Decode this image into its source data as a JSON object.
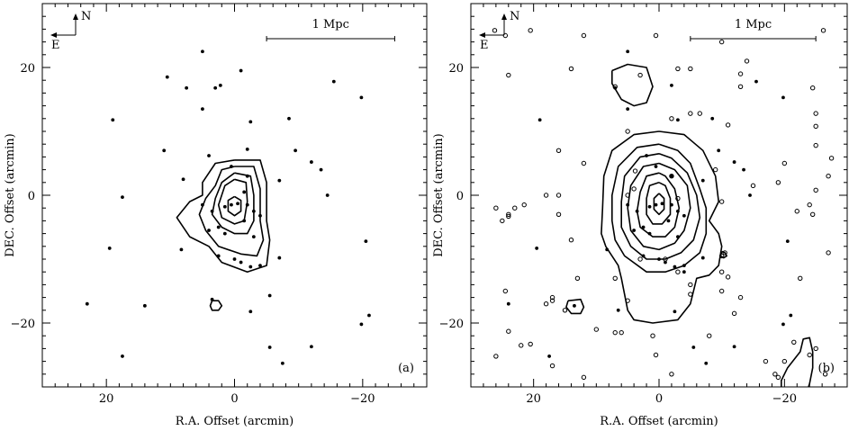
{
  "chart_data": [
    {
      "type": "scatter",
      "panel_label": "(a)",
      "xlabel": "R.A. Offset (arcmin)",
      "ylabel": "DEC. Offset (arcmin)",
      "xlim": [
        30,
        -30
      ],
      "ylim": [
        -30,
        30
      ],
      "x_ticks": [
        20,
        0,
        -20
      ],
      "x_tick_labels": [
        "20",
        "0",
        "−20"
      ],
      "y_ticks": [
        20,
        0,
        -20
      ],
      "y_tick_labels": [
        "20",
        "0",
        "−20"
      ],
      "compass": {
        "north": "N",
        "east": "E"
      },
      "scale_bar": {
        "label": "1 Mpc",
        "from": -5,
        "to": -25
      },
      "series": [
        {
          "marker": "filled",
          "points": [
            [
              5,
              22.5
            ],
            [
              -1,
              19.5
            ],
            [
              10.5,
              18.5
            ],
            [
              7.5,
              16.8
            ],
            [
              3,
              16.8
            ],
            [
              2.2,
              17.2
            ],
            [
              -15.5,
              17.8
            ],
            [
              -19.8,
              15.3
            ],
            [
              5,
              13.5
            ],
            [
              19,
              11.8
            ],
            [
              -8.5,
              12
            ],
            [
              -2.5,
              11.5
            ],
            [
              -2,
              7.2
            ],
            [
              -9.5,
              7
            ],
            [
              11,
              7
            ],
            [
              4,
              6.2
            ],
            [
              -12,
              5.2
            ],
            [
              -13.5,
              4
            ],
            [
              8,
              2.5
            ],
            [
              0.5,
              4.5
            ],
            [
              -2,
              3
            ],
            [
              -7,
              2.3
            ],
            [
              -14.5,
              0
            ],
            [
              -1.5,
              0.5
            ],
            [
              17.5,
              -0.3
            ],
            [
              5,
              -1.5
            ],
            [
              1.5,
              -1.8
            ],
            [
              0.5,
              -1.5
            ],
            [
              -0.5,
              -1.3
            ],
            [
              -2,
              -1.5
            ],
            [
              -3,
              -2.5
            ],
            [
              3.5,
              -2.5
            ],
            [
              -4,
              -3.2
            ],
            [
              -1.5,
              -4
            ],
            [
              2.5,
              -5
            ],
            [
              4,
              -5.5
            ],
            [
              1.5,
              -6
            ],
            [
              -3,
              -6.5
            ],
            [
              8.3,
              -8.5
            ],
            [
              19.5,
              -8.3
            ],
            [
              -20.5,
              -7.2
            ],
            [
              2.5,
              -9.5
            ],
            [
              0,
              -10
            ],
            [
              -1,
              -10.5
            ],
            [
              -2.5,
              -11.2
            ],
            [
              -4,
              -11
            ],
            [
              -7,
              -9.8
            ],
            [
              3.5,
              -16.3
            ],
            [
              -5.5,
              -15.7
            ],
            [
              23,
              -17
            ],
            [
              14,
              -17.3
            ],
            [
              -2.5,
              -18.2
            ],
            [
              -19.8,
              -20.2
            ],
            [
              -21,
              -18.8
            ],
            [
              17.5,
              -25.2
            ],
            [
              -5.5,
              -23.8
            ],
            [
              -12,
              -23.7
            ],
            [
              -7.5,
              -26.3
            ]
          ]
        }
      ]
    },
    {
      "type": "scatter",
      "panel_label": "(b)",
      "xlabel": "R.A. Offset (arcmin)",
      "ylabel": "DEC. Offset (arcmin)",
      "xlim": [
        30,
        -30
      ],
      "ylim": [
        -30,
        30
      ],
      "x_ticks": [
        20,
        0,
        -20
      ],
      "x_tick_labels": [
        "20",
        "0",
        "−20"
      ],
      "y_ticks": [
        20,
        0,
        -20
      ],
      "y_tick_labels": [
        "20",
        "0",
        "−20"
      ],
      "compass": {
        "north": "N",
        "east": "E"
      },
      "scale_bar": {
        "label": "1 Mpc",
        "from": -5,
        "to": -25
      },
      "series": [
        {
          "marker": "filled",
          "points": [
            [
              5,
              22.5
            ],
            [
              7,
              16.8
            ],
            [
              5,
              13.5
            ],
            [
              -2,
              17.2
            ],
            [
              19,
              11.8
            ],
            [
              -8.5,
              12
            ],
            [
              -3,
              11.8
            ],
            [
              -9.5,
              7
            ],
            [
              -12,
              5.2
            ],
            [
              -13.5,
              4
            ],
            [
              2,
              6.2
            ],
            [
              0.5,
              4.5
            ],
            [
              -2,
              3
            ],
            [
              -7,
              2.3
            ],
            [
              -14.5,
              0
            ],
            [
              5,
              -1.5
            ],
            [
              1.5,
              -1.8
            ],
            [
              0.5,
              -1.5
            ],
            [
              -0.5,
              -1.3
            ],
            [
              -2,
              -1.5
            ],
            [
              -3,
              -2.5
            ],
            [
              3.5,
              -2.5
            ],
            [
              -4,
              -3.2
            ],
            [
              -1.5,
              -4
            ],
            [
              2.5,
              -5
            ],
            [
              4,
              -5.5
            ],
            [
              1.5,
              -6
            ],
            [
              -3,
              -6.5
            ],
            [
              8.3,
              -8.5
            ],
            [
              19.5,
              -8.3
            ],
            [
              -20.5,
              -7.2
            ],
            [
              2.5,
              -9.5
            ],
            [
              0,
              -10
            ],
            [
              -1,
              -10.5
            ],
            [
              -2.5,
              -11.2
            ],
            [
              -4,
              -11
            ],
            [
              -7,
              -9.8
            ],
            [
              13.5,
              -17.3
            ],
            [
              -2.5,
              -18.2
            ],
            [
              -19.8,
              -20.2
            ],
            [
              -21,
              -18.8
            ],
            [
              17.5,
              -25.2
            ],
            [
              -5.5,
              -23.8
            ],
            [
              -12,
              -23.7
            ],
            [
              -7.5,
              -26.3
            ],
            [
              24,
              -17
            ],
            [
              6.5,
              -18
            ],
            [
              -19.8,
              15.3
            ],
            [
              -15.5,
              17.8
            ],
            [
              -4,
              -12
            ]
          ]
        },
        {
          "marker": "open",
          "points": [
            [
              26.2,
              25.8
            ],
            [
              24.5,
              25
            ],
            [
              20.5,
              25.8
            ],
            [
              12,
              25
            ],
            [
              0.5,
              25
            ],
            [
              -10,
              24
            ],
            [
              -26.2,
              25.8
            ],
            [
              14,
              19.8
            ],
            [
              24,
              18.8
            ],
            [
              7,
              17
            ],
            [
              3,
              18.8
            ],
            [
              -3,
              19.8
            ],
            [
              -5,
              19.8
            ],
            [
              -13,
              19
            ],
            [
              -14,
              21
            ],
            [
              -13,
              17
            ],
            [
              -24.5,
              16.8
            ],
            [
              -25,
              12.8
            ],
            [
              -25,
              10.8
            ],
            [
              -25,
              7.8
            ],
            [
              -5,
              12.8
            ],
            [
              -6.5,
              12.8
            ],
            [
              -2,
              12
            ],
            [
              -11,
              11
            ],
            [
              5,
              10
            ],
            [
              12,
              5
            ],
            [
              16,
              7
            ],
            [
              -9,
              4
            ],
            [
              -20,
              5
            ],
            [
              -27.5,
              5.8
            ],
            [
              -19,
              2
            ],
            [
              -25,
              0.8
            ],
            [
              -27,
              3
            ],
            [
              -15,
              1.5
            ],
            [
              3.8,
              3.8
            ],
            [
              5,
              0
            ],
            [
              -2,
              3
            ],
            [
              16,
              0
            ],
            [
              21.5,
              -1.5
            ],
            [
              26,
              -2
            ],
            [
              23,
              -2
            ],
            [
              24,
              -3
            ],
            [
              25,
              -4
            ],
            [
              24,
              -3.3
            ],
            [
              16,
              -3
            ],
            [
              18,
              0
            ],
            [
              4,
              1
            ],
            [
              -3,
              -0.5
            ],
            [
              -10,
              -1
            ],
            [
              -24,
              -1.5
            ],
            [
              -22,
              -2.5
            ],
            [
              -24.5,
              -3
            ],
            [
              -27,
              -9
            ],
            [
              -22.5,
              -13
            ],
            [
              -13,
              -16
            ],
            [
              -12,
              -18.5
            ],
            [
              -10,
              -15
            ],
            [
              -10,
              -12
            ],
            [
              -11,
              -12.8
            ],
            [
              7,
              -13
            ],
            [
              -3,
              -12
            ],
            [
              13,
              -13
            ],
            [
              14,
              -7
            ],
            [
              17,
              -16.5
            ],
            [
              18,
              -17
            ],
            [
              -5,
              -14
            ],
            [
              6,
              -21.5
            ],
            [
              10,
              -21
            ],
            [
              24.5,
              -15
            ],
            [
              24,
              -21.3
            ],
            [
              22,
              -23.5
            ],
            [
              20.5,
              -23.3
            ],
            [
              17,
              -16
            ],
            [
              3,
              -10
            ],
            [
              -1,
              -10
            ],
            [
              -8,
              -22
            ],
            [
              -20,
              -26
            ],
            [
              -17,
              -26
            ],
            [
              -21.5,
              -23
            ],
            [
              -25,
              -24
            ],
            [
              -24,
              -25
            ],
            [
              -26.5,
              -28
            ],
            [
              -19,
              -28.5
            ],
            [
              -18.5,
              -28
            ],
            [
              -2,
              -28
            ],
            [
              0.5,
              -25
            ],
            [
              12,
              -28.5
            ],
            [
              17,
              -26.7
            ],
            [
              26,
              -25.2
            ],
            [
              7,
              -21.5
            ],
            [
              15,
              -18
            ],
            [
              5,
              -16.5
            ],
            [
              -5,
              -15.5
            ],
            [
              1,
              -22
            ],
            [
              -10.5,
              -9
            ],
            [
              -10,
              -9.5
            ]
          ]
        }
      ]
    }
  ]
}
